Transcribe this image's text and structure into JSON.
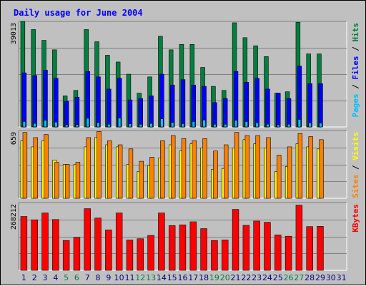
{
  "chart_data": {
    "type": "bar",
    "title": "Daily usage for June 2004",
    "days": [
      "1",
      "2",
      "3",
      "4",
      "5",
      "6",
      "7",
      "8",
      "9",
      "10",
      "11",
      "12",
      "13",
      "14",
      "15",
      "16",
      "17",
      "18",
      "19",
      "20",
      "21",
      "22",
      "23",
      "24",
      "25",
      "26",
      "27",
      "28",
      "29",
      "30",
      "31"
    ],
    "weekend_days": [
      "5",
      "6",
      "12",
      "13",
      "19",
      "20",
      "26",
      "27"
    ],
    "panels": [
      {
        "name": "requests",
        "ymax_label": "39013",
        "ylim": [
          0,
          39013
        ],
        "legend": [
          "Pages",
          "Files",
          "Hits"
        ],
        "series": [
          {
            "name": "Hits",
            "color": "#008040",
            "values": [
              39013,
              36000,
              32000,
              28500,
              11500,
              13500,
              36000,
              31500,
              26500,
              24000,
              19500,
              12500,
              18500,
              33500,
              28500,
              30500,
              30500,
              22000,
              15000,
              13500,
              38500,
              33000,
              30000,
              26000,
              12500,
              13000,
              38700,
              27000,
              27000,
              null,
              null
            ]
          },
          {
            "name": "Files",
            "color": "#0000ff",
            "values": [
              20000,
              19000,
              21000,
              18000,
              9500,
              11000,
              20500,
              18500,
              14000,
              18000,
              10000,
              10500,
              11500,
              19500,
              15500,
              17500,
              15500,
              15000,
              9000,
              10500,
              20500,
              16500,
              18000,
              14000,
              12500,
              10500,
              22500,
              16000,
              16000,
              null,
              null
            ]
          },
          {
            "name": "Pages",
            "color": "#00c0ff",
            "values": [
              2000,
              1300,
              2500,
              1800,
              800,
              900,
              3200,
              1600,
              1000,
              3300,
              1200,
              1000,
              1300,
              3000,
              1700,
              1200,
              2000,
              2600,
              1000,
              1000,
              2500,
              2000,
              1500,
              1000,
              800,
              1000,
              2800,
              1500,
              1400,
              null,
              null
            ]
          }
        ]
      },
      {
        "name": "visitors",
        "ymax_label": "659",
        "ylim": [
          0,
          659
        ],
        "legend": [
          "Sites",
          "Visits"
        ],
        "series": [
          {
            "name": "Visits",
            "color": "#ffff00",
            "values": [
              560,
              500,
              560,
              370,
              330,
              330,
              500,
              590,
              520,
              500,
              330,
              260,
              320,
              390,
              520,
              460,
              530,
              490,
              280,
              290,
              490,
              570,
              530,
              490,
              260,
              310,
              530,
              500,
              480,
              null,
              null
            ]
          },
          {
            "name": "Sites",
            "color": "#ff8000",
            "values": [
              640,
              590,
              620,
              350,
              330,
              350,
              590,
              650,
              560,
              520,
              480,
              360,
              400,
              560,
              610,
              580,
              560,
              580,
              460,
              520,
              640,
              610,
              610,
              590,
              420,
              500,
              630,
              600,
              570,
              null,
              null
            ]
          }
        ]
      },
      {
        "name": "kbytes",
        "ymax_label": "268212",
        "ylim": [
          0,
          268212
        ],
        "legend": [
          "KBytes"
        ],
        "series": [
          {
            "name": "KBytes",
            "color": "#ff0000",
            "values": [
              213000,
              200000,
              227000,
              201000,
              118000,
              130000,
              244000,
              207000,
              160000,
              227000,
              120000,
              125000,
              138000,
              227000,
              177000,
              180000,
              192000,
              165000,
              118000,
              120000,
              241000,
              178000,
              195000,
              190000,
              140000,
              135000,
              258000,
              173000,
              174000,
              null,
              null
            ]
          }
        ]
      }
    ],
    "legend_colors": {
      "Pages": "#00c0ff",
      "Files": "#0000ff",
      "Hits": "#008040",
      "Sites": "#ff8000",
      "Visits": "#ffff00",
      "KBytes": "#ff0000"
    },
    "separator_color": "#000000",
    "title_color": "#0000ff",
    "weekday_label_color": "#000080",
    "weekend_label_color": "#008040",
    "grid": true,
    "legend_placement": "right"
  }
}
